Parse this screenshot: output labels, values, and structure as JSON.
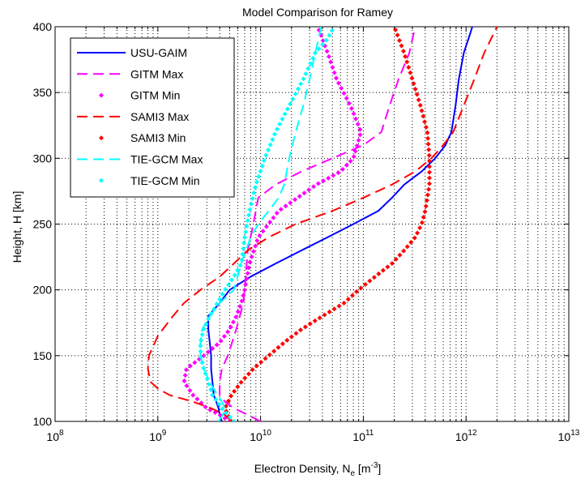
{
  "chart_data": {
    "type": "line",
    "title": "Model Comparison for Ramey",
    "xlabel": {
      "main": "Electron Density, N",
      "sub": "e",
      "unit_open": " [m",
      "sup": "-3",
      "unit_close": "]"
    },
    "ylabel": "Height, H [km]",
    "x_scale": "log",
    "xlim": [
      100000000.0,
      10000000000000.0
    ],
    "ylim": [
      100,
      400
    ],
    "x_ticks": [
      {
        "value": 100000000.0,
        "base": "10",
        "exp": "8"
      },
      {
        "value": 1000000000.0,
        "base": "10",
        "exp": "9"
      },
      {
        "value": 10000000000.0,
        "base": "10",
        "exp": "10"
      },
      {
        "value": 100000000000.0,
        "base": "10",
        "exp": "11"
      },
      {
        "value": 1000000000000.0,
        "base": "10",
        "exp": "12"
      },
      {
        "value": 10000000000000.0,
        "base": "10",
        "exp": "13"
      }
    ],
    "y_ticks": [
      "100",
      "150",
      "200",
      "250",
      "300",
      "350",
      "400"
    ],
    "grid": true,
    "legend_position": "top-left",
    "series": [
      {
        "name": "USU-GAIM",
        "style": "solid",
        "color": "#0000ff",
        "points": [
          [
            4200000000.0,
            100
          ],
          [
            4000000000.0,
            105
          ],
          [
            3900000000.0,
            110
          ],
          [
            3700000000.0,
            115
          ],
          [
            3500000000.0,
            120
          ],
          [
            3400000000.0,
            130
          ],
          [
            3300000000.0,
            140
          ],
          [
            3300000000.0,
            150
          ],
          [
            3200000000.0,
            160
          ],
          [
            3100000000.0,
            170
          ],
          [
            3100000000.0,
            180
          ],
          [
            4000000000.0,
            190
          ],
          [
            5000000000.0,
            200
          ],
          [
            8000000000.0,
            210
          ],
          [
            14000000000.0,
            220
          ],
          [
            25000000000.0,
            230
          ],
          [
            45000000000.0,
            240
          ],
          [
            80000000000.0,
            250
          ],
          [
            140000000000.0,
            260
          ],
          [
            190000000000.0,
            270
          ],
          [
            250000000000.0,
            280
          ],
          [
            370000000000.0,
            290
          ],
          [
            500000000000.0,
            300
          ],
          [
            630000000000.0,
            310
          ],
          [
            720000000000.0,
            320
          ],
          [
            790000000000.0,
            340
          ],
          [
            850000000000.0,
            360
          ],
          [
            950000000000.0,
            380
          ],
          [
            1100000000000.0,
            395
          ],
          [
            1150000000000.0,
            400
          ]
        ]
      },
      {
        "name": "GITM Max",
        "style": "dashed",
        "color": "#ff00ff",
        "points": [
          [
            10000000000.0,
            100
          ],
          [
            7500000000.0,
            105
          ],
          [
            5500000000.0,
            110
          ],
          [
            4500000000.0,
            115
          ],
          [
            4000000000.0,
            120
          ],
          [
            4000000000.0,
            130
          ],
          [
            4200000000.0,
            140
          ],
          [
            4800000000.0,
            150
          ],
          [
            5800000000.0,
            170
          ],
          [
            6800000000.0,
            190
          ],
          [
            7000000000.0,
            200
          ],
          [
            7500000000.0,
            230
          ],
          [
            8500000000.0,
            250
          ],
          [
            9500000000.0,
            270
          ],
          [
            14000000000.0,
            280
          ],
          [
            25000000000.0,
            290
          ],
          [
            50000000000.0,
            300
          ],
          [
            100000000000.0,
            310
          ],
          [
            150000000000.0,
            320
          ],
          [
            180000000000.0,
            340
          ],
          [
            220000000000.0,
            360
          ],
          [
            280000000000.0,
            380
          ],
          [
            320000000000.0,
            400
          ]
        ]
      },
      {
        "name": "GITM Min",
        "style": "dotted",
        "color": "#ff00ff",
        "points": [
          [
            5000000000.0,
            100
          ],
          [
            4000000000.0,
            105
          ],
          [
            3000000000.0,
            110
          ],
          [
            2200000000.0,
            120
          ],
          [
            1800000000.0,
            130
          ],
          [
            1900000000.0,
            140
          ],
          [
            2800000000.0,
            150
          ],
          [
            4000000000.0,
            160
          ],
          [
            5000000000.0,
            170
          ],
          [
            5800000000.0,
            180
          ],
          [
            6500000000.0,
            190
          ],
          [
            7000000000.0,
            200
          ],
          [
            7800000000.0,
            220
          ],
          [
            9500000000.0,
            240
          ],
          [
            15000000000.0,
            260
          ],
          [
            35000000000.0,
            280
          ],
          [
            60000000000.0,
            290
          ],
          [
            80000000000.0,
            300
          ],
          [
            95000000000.0,
            320
          ],
          [
            75000000000.0,
            340
          ],
          [
            55000000000.0,
            360
          ],
          [
            45000000000.0,
            380
          ],
          [
            36000000000.0,
            400
          ]
        ]
      },
      {
        "name": "SAMI3 Max",
        "style": "dashed",
        "color": "#ff0000",
        "points": [
          [
            5200000000.0,
            100
          ],
          [
            4500000000.0,
            105
          ],
          [
            3300000000.0,
            110
          ],
          [
            2200000000.0,
            115
          ],
          [
            1300000000.0,
            120
          ],
          [
            1000000000.0,
            125
          ],
          [
            850000000.0,
            130
          ],
          [
            800000000.0,
            140
          ],
          [
            820000000.0,
            150
          ],
          [
            1000000000.0,
            165
          ],
          [
            1400000000.0,
            180
          ],
          [
            1800000000.0,
            190
          ],
          [
            2600000000.0,
            200
          ],
          [
            4000000000.0,
            210
          ],
          [
            5500000000.0,
            220
          ],
          [
            7500000000.0,
            230
          ],
          [
            12000000000.0,
            240
          ],
          [
            22000000000.0,
            250
          ],
          [
            50000000000.0,
            260
          ],
          [
            100000000000.0,
            270
          ],
          [
            190000000000.0,
            280
          ],
          [
            320000000000.0,
            290
          ],
          [
            460000000000.0,
            300
          ],
          [
            600000000000.0,
            310
          ],
          [
            750000000000.0,
            320
          ],
          [
            950000000000.0,
            340
          ],
          [
            1200000000000.0,
            360
          ],
          [
            1500000000000.0,
            380
          ],
          [
            2000000000000.0,
            400
          ]
        ]
      },
      {
        "name": "SAMI3 Min",
        "style": "dotted",
        "color": "#ff0000",
        "points": [
          [
            5200000000.0,
            100
          ],
          [
            4800000000.0,
            105
          ],
          [
            4500000000.0,
            110
          ],
          [
            5200000000.0,
            120
          ],
          [
            6500000000.0,
            130
          ],
          [
            8500000000.0,
            140
          ],
          [
            12000000000.0,
            150
          ],
          [
            17000000000.0,
            160
          ],
          [
            25000000000.0,
            170
          ],
          [
            40000000000.0,
            180
          ],
          [
            65000000000.0,
            190
          ],
          [
            90000000000.0,
            200
          ],
          [
            130000000000.0,
            210
          ],
          [
            190000000000.0,
            220
          ],
          [
            250000000000.0,
            230
          ],
          [
            320000000000.0,
            240
          ],
          [
            370000000000.0,
            250
          ],
          [
            400000000000.0,
            260
          ],
          [
            420000000000.0,
            270
          ],
          [
            440000000000.0,
            280
          ],
          [
            440000000000.0,
            300
          ],
          [
            420000000000.0,
            320
          ],
          [
            360000000000.0,
            340
          ],
          [
            300000000000.0,
            360
          ],
          [
            250000000000.0,
            380
          ],
          [
            200000000000.0,
            400
          ]
        ]
      },
      {
        "name": "TIE-GCM Max",
        "style": "dashed",
        "color": "#00ffff",
        "points": [
          [
            3900000000.0,
            100
          ],
          [
            4300000000.0,
            105
          ],
          [
            4500000000.0,
            110
          ],
          [
            4200000000.0,
            115
          ],
          [
            3800000000.0,
            120
          ],
          [
            3200000000.0,
            130
          ],
          [
            2800000000.0,
            140
          ],
          [
            2600000000.0,
            150
          ],
          [
            2600000000.0,
            160
          ],
          [
            2700000000.0,
            170
          ],
          [
            3200000000.0,
            180
          ],
          [
            4000000000.0,
            190
          ],
          [
            5500000000.0,
            200
          ],
          [
            6500000000.0,
            220
          ],
          [
            8000000000.0,
            240
          ],
          [
            9500000000.0,
            250
          ],
          [
            12000000000.0,
            260
          ],
          [
            15000000000.0,
            270
          ],
          [
            17000000000.0,
            280
          ],
          [
            19000000000.0,
            300
          ],
          [
            22000000000.0,
            320
          ],
          [
            26000000000.0,
            340
          ],
          [
            30000000000.0,
            360
          ],
          [
            34000000000.0,
            380
          ],
          [
            39000000000.0,
            400
          ]
        ]
      },
      {
        "name": "TIE-GCM Min",
        "style": "dotted",
        "color": "#00ffff",
        "points": [
          [
            5500000000.0,
            100
          ],
          [
            4800000000.0,
            105
          ],
          [
            4200000000.0,
            110
          ],
          [
            3800000000.0,
            115
          ],
          [
            3400000000.0,
            120
          ],
          [
            3100000000.0,
            130
          ],
          [
            2800000000.0,
            140
          ],
          [
            2600000000.0,
            150
          ],
          [
            2600000000.0,
            160
          ],
          [
            2800000000.0,
            170
          ],
          [
            3200000000.0,
            180
          ],
          [
            3800000000.0,
            190
          ],
          [
            4500000000.0,
            200
          ],
          [
            5500000000.0,
            210
          ],
          [
            6500000000.0,
            220
          ],
          [
            7000000000.0,
            240
          ],
          [
            7800000000.0,
            260
          ],
          [
            9000000000.0,
            280
          ],
          [
            11000000000.0,
            300
          ],
          [
            14000000000.0,
            320
          ],
          [
            19000000000.0,
            340
          ],
          [
            26000000000.0,
            360
          ],
          [
            34000000000.0,
            380
          ],
          [
            44000000000.0,
            390
          ],
          [
            52000000000.0,
            400
          ]
        ]
      }
    ]
  }
}
